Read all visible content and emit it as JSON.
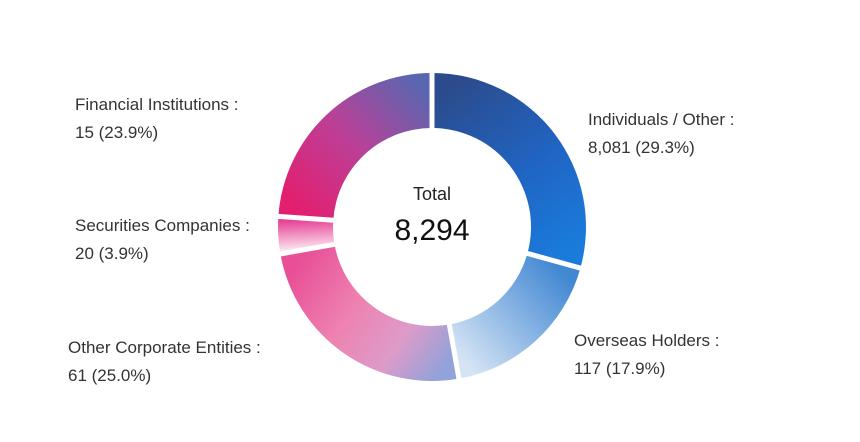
{
  "page": {
    "background": "#ffffff"
  },
  "center": {
    "label": "Total",
    "value": "8,294"
  },
  "legend": {
    "financial": {
      "label": "Financial Institutions :",
      "value": "15 (23.9%)"
    },
    "securities": {
      "label": "Securities Companies :",
      "value": "20 (3.9%)"
    },
    "other_corporate": {
      "label": "Other Corporate Entities :",
      "value": "61 (25.0%)"
    },
    "individuals": {
      "label": "Individuals / Other :",
      "value": "8,081 (29.3%)"
    },
    "overseas": {
      "label": "Overseas Holders :",
      "value": "117 (17.9%)"
    }
  },
  "chart_data": {
    "type": "pie",
    "subtype": "donut",
    "title": "",
    "center_label": "Total",
    "center_value": "8,294",
    "total": 8294,
    "start_angle_deg": 0,
    "direction": "clockwise",
    "separator_color": "#ffffff",
    "categories": [
      "Individuals / Other",
      "Overseas Holders",
      "Other Corporate Entities",
      "Securities Companies",
      "Financial Institutions"
    ],
    "values": [
      8081,
      117,
      61,
      20,
      15
    ],
    "percentages": [
      29.3,
      17.9,
      25.0,
      3.9,
      23.9
    ],
    "segments": [
      {
        "id": "individuals",
        "label": "Individuals / Other",
        "display_value": "8,081",
        "value": 8081,
        "percent": 29.3,
        "gradient": [
          {
            "offset": 0,
            "color": "#2c4b8c"
          },
          {
            "offset": 0.55,
            "color": "#2064c2"
          },
          {
            "offset": 1,
            "color": "#1a7bdb"
          }
        ]
      },
      {
        "id": "overseas",
        "label": "Overseas Holders",
        "display_value": "117",
        "value": 117,
        "percent": 17.9,
        "gradient": [
          {
            "offset": 0,
            "color": "#4187d2"
          },
          {
            "offset": 1,
            "color": "#d5e4f5"
          }
        ]
      },
      {
        "id": "other_corporate",
        "label": "Other Corporate Entities",
        "display_value": "61",
        "value": 61,
        "percent": 25.0,
        "gradient": [
          {
            "offset": 0,
            "color": "#93a2d9"
          },
          {
            "offset": 0.28,
            "color": "#dd9bc9"
          },
          {
            "offset": 0.6,
            "color": "#ee82b0"
          },
          {
            "offset": 1,
            "color": "#e84f97"
          }
        ]
      },
      {
        "id": "securities",
        "label": "Securities Companies",
        "display_value": "20",
        "value": 20,
        "percent": 3.9,
        "gradient": [
          {
            "offset": 0,
            "color": "#fbe4f0"
          },
          {
            "offset": 1,
            "color": "#e63a90"
          }
        ]
      },
      {
        "id": "financial",
        "label": "Financial Institutions",
        "display_value": "15",
        "value": 15,
        "percent": 23.9,
        "gradient": [
          {
            "offset": 0,
            "color": "#e31f70"
          },
          {
            "offset": 0.5,
            "color": "#bb4097"
          },
          {
            "offset": 1,
            "color": "#5b66b0"
          }
        ]
      }
    ]
  }
}
